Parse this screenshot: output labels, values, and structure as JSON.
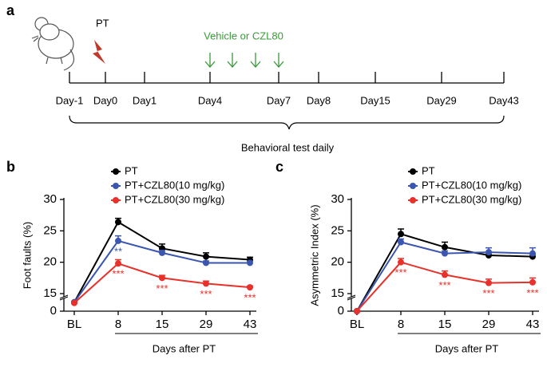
{
  "panel_a": {
    "label": "a",
    "treatment": "PT",
    "drug_label": "Vehicle or CZL80",
    "days": [
      "Day-1",
      "Day0",
      "Day1",
      "Day4",
      "Day7",
      "Day8",
      "Day15",
      "Day29",
      "Day43"
    ],
    "bracket_label": "Behavioral test daily"
  },
  "chart_data": [
    {
      "type": "line",
      "panel_label": "b",
      "ylabel": "Foot faults (%)",
      "xlabel": "Days after PT",
      "categories": [
        "BL",
        "8",
        "15",
        "29",
        "43"
      ],
      "ylim": [
        0,
        30
      ],
      "yticks": [
        0,
        15,
        20,
        25,
        30
      ],
      "broken_axis": true,
      "series": [
        {
          "name": "PT",
          "color": "#000000",
          "values": [
            12,
            26.4,
            22.2,
            20.9,
            20.4
          ],
          "errors": [
            0.4,
            0.6,
            0.7,
            0.6,
            0.4
          ],
          "annotations": [
            null,
            null,
            null,
            null,
            null
          ]
        },
        {
          "name": "PT+CZL80(10 mg/kg)",
          "color": "#3a56b0",
          "values": [
            12,
            23.4,
            21.5,
            19.9,
            19.9
          ],
          "errors": [
            0.4,
            0.8,
            0.4,
            0.3,
            0.3
          ],
          "annotations": [
            null,
            "**",
            null,
            null,
            null
          ]
        },
        {
          "name": "PT+CZL80(30 mg/kg)",
          "color": "#e8312a",
          "values": [
            11,
            19.8,
            17.5,
            16.6,
            16.0
          ],
          "errors": [
            0.4,
            0.6,
            0.4,
            0.4,
            0.2
          ],
          "annotations": [
            null,
            "***",
            "***",
            "***",
            "***"
          ]
        }
      ]
    },
    {
      "type": "line",
      "panel_label": "c",
      "ylabel": "Asymmetric Index (%)",
      "xlabel": "Days after PT",
      "categories": [
        "BL",
        "8",
        "15",
        "29",
        "43"
      ],
      "ylim": [
        0,
        30
      ],
      "yticks": [
        0,
        15,
        20,
        25,
        30
      ],
      "broken_axis": true,
      "series": [
        {
          "name": "PT",
          "color": "#000000",
          "values": [
            0,
            24.5,
            22.4,
            21.1,
            20.9
          ],
          "errors": [
            0.2,
            0.8,
            0.8,
            0.4,
            0.4
          ],
          "annotations": [
            null,
            null,
            null,
            null,
            null
          ]
        },
        {
          "name": "PT+CZL80(10 mg/kg)",
          "color": "#3a56b0",
          "values": [
            0,
            23.2,
            21.4,
            21.6,
            21.4
          ],
          "errors": [
            0.2,
            0.5,
            0.4,
            0.7,
            0.9
          ],
          "annotations": [
            null,
            null,
            null,
            null,
            null
          ]
        },
        {
          "name": "PT+CZL80(30 mg/kg)",
          "color": "#e8312a",
          "values": [
            0,
            20.0,
            18.0,
            16.7,
            16.8
          ],
          "errors": [
            0.2,
            0.6,
            0.6,
            0.6,
            0.7
          ],
          "annotations": [
            null,
            "***",
            "***",
            "***",
            "***"
          ]
        }
      ]
    }
  ]
}
